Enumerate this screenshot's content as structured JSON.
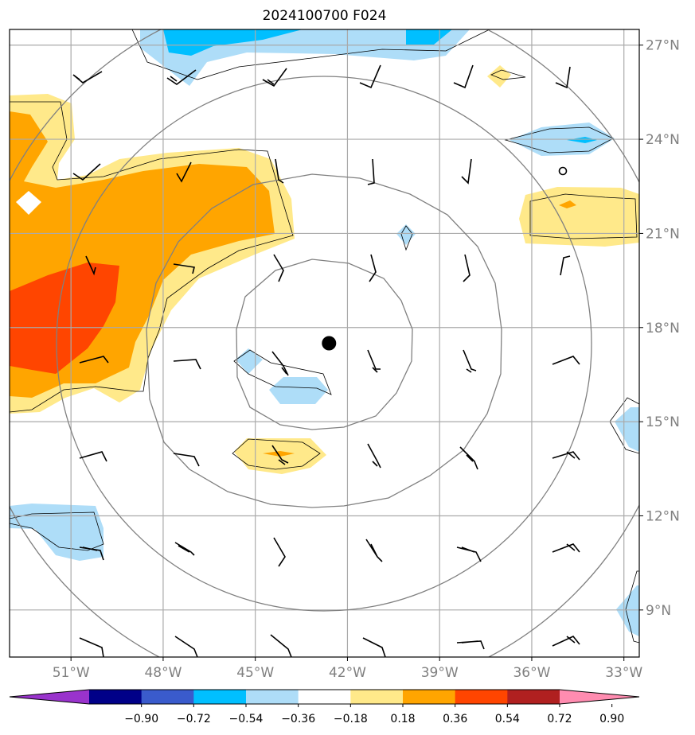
{
  "title": "2024100700 F024",
  "map": {
    "lon_range": [
      -53,
      -32.5
    ],
    "lat_range": [
      7.5,
      27.5
    ],
    "lon_ticks": [
      {
        "value": -51,
        "label": "51°W"
      },
      {
        "value": -48,
        "label": "48°W"
      },
      {
        "value": -45,
        "label": "45°W"
      },
      {
        "value": -42,
        "label": "42°W"
      },
      {
        "value": -39,
        "label": "39°W"
      },
      {
        "value": -36,
        "label": "36°W"
      },
      {
        "value": -33,
        "label": "33°W"
      }
    ],
    "lat_ticks": [
      {
        "value": 27,
        "label": "27°N"
      },
      {
        "value": 24,
        "label": "24°N"
      },
      {
        "value": 21,
        "label": "21°N"
      },
      {
        "value": 18,
        "label": "18°N"
      },
      {
        "value": 15,
        "label": "15°N"
      },
      {
        "value": 12,
        "label": "12°N"
      },
      {
        "value": 9,
        "label": "9°N"
      }
    ],
    "storm_center": {
      "lon": -42.6,
      "lat": 17.5
    },
    "grid_color": "#aaaaaa",
    "ring_color": "#808080",
    "axis_label_color": "#808080"
  },
  "colorbar": {
    "colors": [
      "#9933cc",
      "#000088",
      "#3a5bcc",
      "#00bfff",
      "#aeddf8",
      "#ffffff",
      "#ffe98a",
      "#ffa500",
      "#ff4500",
      "#b02020",
      "#ff8cb0"
    ],
    "tick_labels": [
      "−0.90",
      "−0.72",
      "−0.54",
      "−0.36",
      "−0.18",
      "0.18",
      "0.36",
      "0.54",
      "0.72",
      "0.90"
    ],
    "extend": "both"
  },
  "legend": {
    "pos_color": "#ffe98a",
    "pos_mid_color": "#ffa500",
    "pos_high_color": "#ff4500",
    "neg_light_color": "#aeddf8",
    "neg_mid_color": "#00bfff"
  }
}
